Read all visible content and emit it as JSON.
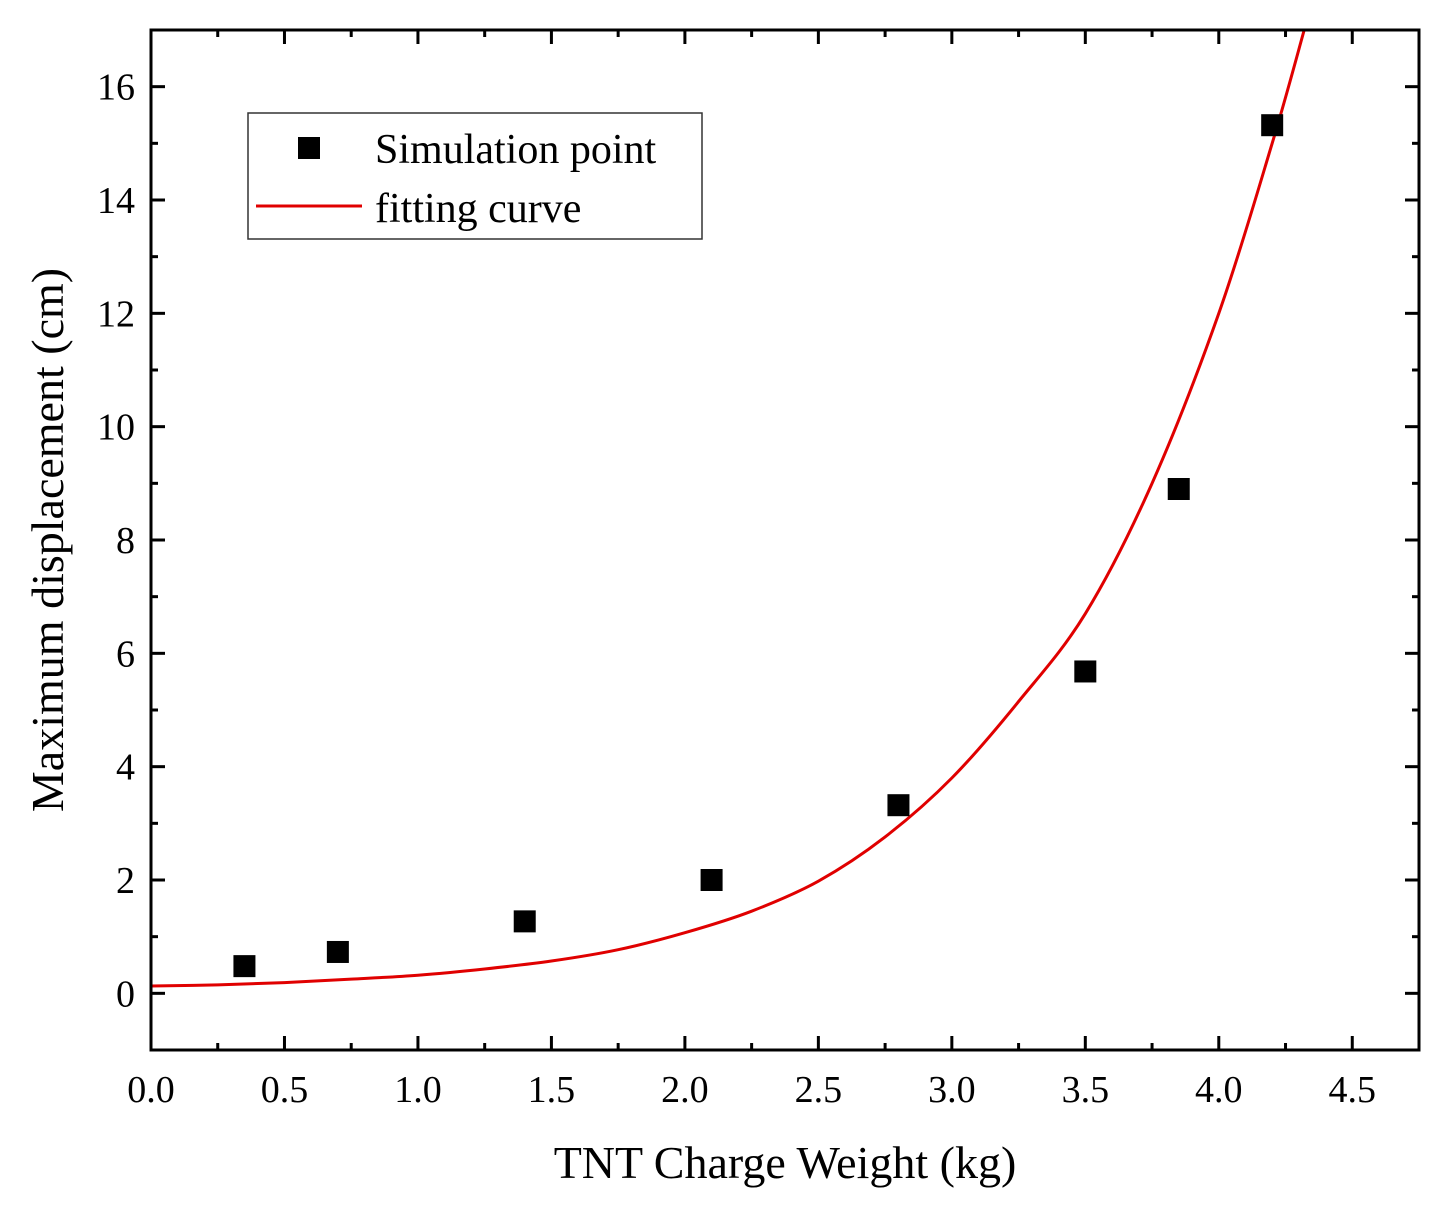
{
  "chart_data": {
    "type": "scatter",
    "title": "",
    "xlabel": "TNT Charge Weight (kg)",
    "ylabel": "Maximum displacement (cm)",
    "xlim": [
      0,
      4.75
    ],
    "ylim": [
      -1,
      17
    ],
    "x_ticks": [
      "0.0",
      "0.5",
      "1.0",
      "1.5",
      "2.0",
      "2.5",
      "3.0",
      "3.5",
      "4.0",
      "4.5"
    ],
    "x_tick_values": [
      0,
      0.5,
      1.0,
      1.5,
      2.0,
      2.5,
      3.0,
      3.5,
      4.0,
      4.5
    ],
    "y_ticks": [
      "0",
      "2",
      "4",
      "6",
      "8",
      "10",
      "12",
      "14",
      "16"
    ],
    "y_tick_values": [
      0,
      2,
      4,
      6,
      8,
      10,
      12,
      14,
      16
    ],
    "grid": false,
    "legend_position": "top-left",
    "series": [
      {
        "name": "Simulation point",
        "kind": "scatter",
        "marker": "square",
        "color": "#000000",
        "x": [
          0.35,
          0.7,
          1.4,
          2.1,
          2.8,
          3.5,
          3.85,
          4.2
        ],
        "y": [
          0.48,
          0.73,
          1.27,
          2.0,
          3.32,
          5.68,
          8.9,
          15.32
        ]
      },
      {
        "name": "fitting curve",
        "kind": "line",
        "color": "#e00000",
        "x": [
          0.0,
          0.25,
          0.5,
          0.75,
          1.0,
          1.25,
          1.5,
          1.75,
          2.0,
          2.25,
          2.5,
          2.75,
          3.0,
          3.25,
          3.5,
          3.75,
          4.0,
          4.2,
          4.32
        ],
        "y": [
          0.13,
          0.15,
          0.19,
          0.25,
          0.32,
          0.43,
          0.57,
          0.77,
          1.07,
          1.45,
          1.98,
          2.76,
          3.8,
          5.15,
          6.7,
          9.0,
          12.0,
          15.0,
          17.0
        ]
      }
    ]
  }
}
